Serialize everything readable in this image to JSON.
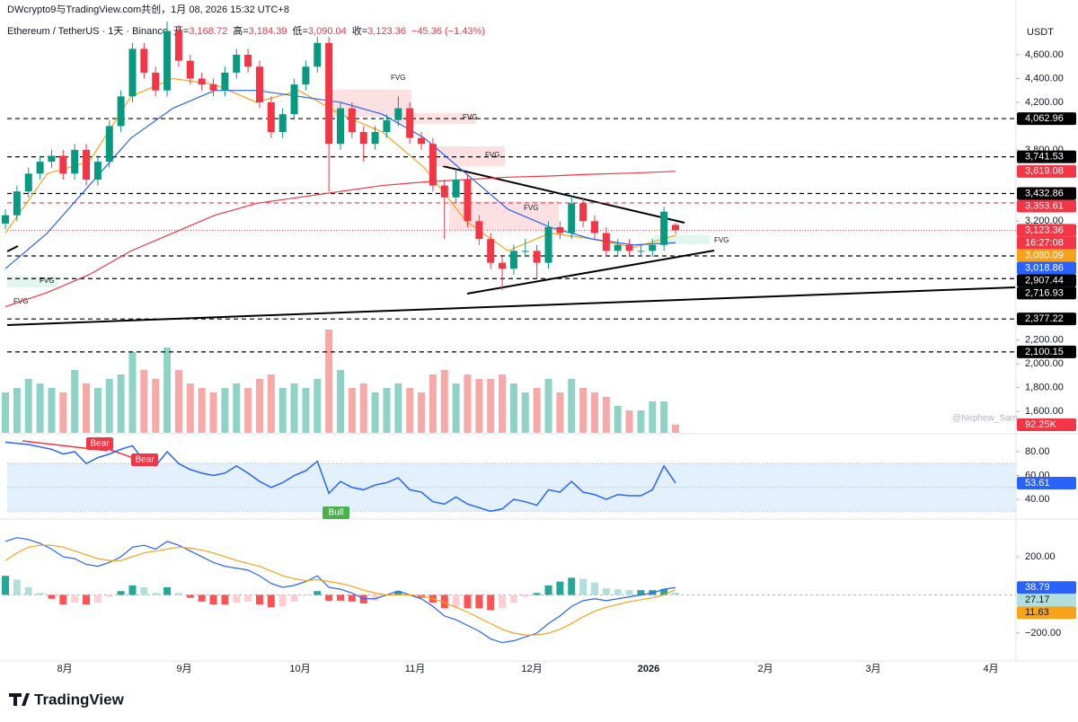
{
  "header": {
    "attribution": "DWcrypto9与TradingView.com共创，1月 08, 2026 15:32 UTC+8",
    "symbol": "Ethereum / TetherUS · 1天 · Binance",
    "ohlc": [
      {
        "key": "开=",
        "value": "3,168.72"
      },
      {
        "key": "高=",
        "value": "3,184.39"
      },
      {
        "key": "低=",
        "value": "3,090.04"
      },
      {
        "key": "收=",
        "value": "3,123.36"
      }
    ],
    "change": "−45.36 (−1.43%)",
    "currency": "USDT",
    "watermark": "@Nephew_Sam_",
    "logo": "TradingView"
  },
  "chart_data": {
    "type": "candlestick",
    "up_color": "#089981",
    "down_color": "#f23645",
    "candles": [
      [
        3180,
        3300,
        3130,
        3250
      ],
      [
        3250,
        3500,
        3200,
        3450
      ],
      [
        3450,
        3650,
        3400,
        3600
      ],
      [
        3600,
        3750,
        3550,
        3700
      ],
      [
        3700,
        3800,
        3650,
        3750
      ],
      [
        3750,
        3800,
        3550,
        3600
      ],
      [
        3600,
        3850,
        3550,
        3800
      ],
      [
        3800,
        3850,
        3500,
        3550
      ],
      [
        3550,
        3750,
        3500,
        3700
      ],
      [
        3700,
        4050,
        3650,
        4000
      ],
      [
        4000,
        4300,
        3950,
        4250
      ],
      [
        4250,
        4700,
        4200,
        4650
      ],
      [
        4650,
        4700,
        4400,
        4450
      ],
      [
        4450,
        4500,
        4250,
        4300
      ],
      [
        4300,
        4880,
        4250,
        4800
      ],
      [
        4800,
        4850,
        4500,
        4550
      ],
      [
        4550,
        4600,
        4350,
        4400
      ],
      [
        4400,
        4450,
        4300,
        4350
      ],
      [
        4350,
        4400,
        4250,
        4300
      ],
      [
        4300,
        4500,
        4250,
        4450
      ],
      [
        4450,
        4650,
        4400,
        4600
      ],
      [
        4600,
        4650,
        4450,
        4500
      ],
      [
        4500,
        4550,
        4150,
        4200
      ],
      [
        4200,
        4250,
        3900,
        3950
      ],
      [
        3950,
        4150,
        3900,
        4100
      ],
      [
        4100,
        4400,
        4050,
        4350
      ],
      [
        4350,
        4550,
        4300,
        4500
      ],
      [
        4500,
        4750,
        4450,
        4700
      ],
      [
        4700,
        4750,
        3450,
        3850
      ],
      [
        3850,
        4200,
        3800,
        4150
      ],
      [
        4150,
        4200,
        3900,
        3950
      ],
      [
        3950,
        4000,
        3700,
        3850
      ],
      [
        3850,
        4000,
        3800,
        3950
      ],
      [
        3950,
        4100,
        3900,
        4050
      ],
      [
        4050,
        4250,
        4000,
        4150
      ],
      [
        4150,
        4200,
        3850,
        3900
      ],
      [
        3900,
        3950,
        3800,
        3850
      ],
      [
        3850,
        3900,
        3450,
        3500
      ],
      [
        3500,
        3550,
        3050,
        3400
      ],
      [
        3400,
        3650,
        3350,
        3550
      ],
      [
        3550,
        3600,
        3150,
        3200
      ],
      [
        3200,
        3250,
        3000,
        3050
      ],
      [
        3050,
        3100,
        2800,
        2850
      ],
      [
        2850,
        2900,
        2620,
        2800
      ],
      [
        2800,
        3000,
        2750,
        2950
      ],
      [
        2950,
        3050,
        2900,
        2950
      ],
      [
        2950,
        3000,
        2720,
        2850
      ],
      [
        2850,
        3200,
        2800,
        3150
      ],
      [
        3150,
        3200,
        3050,
        3100
      ],
      [
        3100,
        3420,
        3050,
        3350
      ],
      [
        3350,
        3400,
        3150,
        3200
      ],
      [
        3200,
        3250,
        3050,
        3100
      ],
      [
        3100,
        3150,
        2900,
        2950
      ],
      [
        2950,
        3050,
        2900,
        3000
      ],
      [
        3000,
        3050,
        2900,
        2950
      ],
      [
        2950,
        3000,
        2900,
        2950
      ],
      [
        2950,
        3050,
        2900,
        3000
      ],
      [
        3000,
        3320,
        2950,
        3280
      ],
      [
        3168.72,
        3184.39,
        3090.04,
        3123.36
      ]
    ],
    "ylim": [
      1419,
      4872
    ],
    "yticks": [
      {
        "value": 4600,
        "label": "4,600.00"
      },
      {
        "value": 4400,
        "label": "4,400.00"
      },
      {
        "value": 4200,
        "label": "4,200.00"
      },
      {
        "value": 3800,
        "label": "3,800.00"
      },
      {
        "value": 3200,
        "label": "3,200.00"
      },
      {
        "value": 2200,
        "label": "2,200.00"
      },
      {
        "value": 2000,
        "label": "2,000.00"
      },
      {
        "value": 1800,
        "label": "1,800.00"
      },
      {
        "value": 1600,
        "label": "1,600.00"
      }
    ],
    "moving_averages": [
      {
        "color": "#f7a21b",
        "values": [
          3100,
          3600,
          3700,
          4250,
          4400,
          4350,
          4200,
          4300,
          4100,
          3950,
          3650,
          3200,
          2950,
          3100,
          3050,
          2980,
          3080.09
        ]
      },
      {
        "color": "#2962ff",
        "values": [
          2800,
          3100,
          3500,
          3900,
          4150,
          4300,
          4300,
          4250,
          4200,
          4100,
          3900,
          3600,
          3300,
          3150,
          3050,
          3000,
          3018.86
        ]
      },
      {
        "color": "#f23645",
        "values": [
          2480,
          2600,
          2750,
          2950,
          3100,
          3250,
          3350,
          3400,
          3450,
          3500,
          3530,
          3550,
          3570,
          3580,
          3595,
          3605,
          3619.08
        ]
      }
    ],
    "price_labels": [
      {
        "value": 4062.96,
        "label": "4,062.96",
        "color": "#000000",
        "line": "dashed"
      },
      {
        "value": 3741.53,
        "label": "3,741.53",
        "color": "#000000",
        "line": "dashed"
      },
      {
        "value": 3619.08,
        "label": "3,619.08",
        "color": "#f23645",
        "line": "none"
      },
      {
        "value": 3432.86,
        "label": "3,432.86",
        "color": "#000000",
        "line": "dashed"
      },
      {
        "value": 3353.61,
        "label": "3,353.61",
        "color": "#f23645",
        "line": "dashed"
      },
      {
        "value": 3123.36,
        "label": "3,123.36",
        "color": "#f23645",
        "line": "dotted",
        "countdown": "16:27:08"
      },
      {
        "value": 3080.09,
        "label": "3,080.09",
        "color": "#f7a21b",
        "line": "none"
      },
      {
        "value": 3018.86,
        "label": "3,018.86",
        "color": "#2962ff",
        "line": "none"
      },
      {
        "value": 2907.44,
        "label": "2,907.44",
        "color": "#000000",
        "line": "dashed"
      },
      {
        "value": 2716.93,
        "label": "2,716.93",
        "color": "#000000",
        "line": "dashed"
      },
      {
        "value": 2377.22,
        "label": "2,377.22",
        "color": "#000000",
        "line": "dashed"
      },
      {
        "value": 2100.15,
        "label": "2,100.15",
        "color": "#000000",
        "line": "dashed"
      }
    ],
    "fvg_labels": [
      "FVG",
      "FVG",
      "FVG",
      "FVG",
      "FVG",
      "FVG",
      "FVG"
    ],
    "volume": {
      "ylim": [
        0,
        1200
      ],
      "values": [
        450,
        500,
        600,
        550,
        500,
        450,
        700,
        550,
        500,
        600,
        650,
        900,
        700,
        600,
        950,
        700,
        550,
        500,
        450,
        500,
        550,
        500,
        600,
        650,
        500,
        550,
        500,
        600,
        1150,
        700,
        500,
        550,
        450,
        500,
        550,
        500,
        450,
        650,
        700,
        550,
        650,
        600,
        600,
        650,
        550,
        450,
        500,
        600,
        450,
        600,
        500,
        450,
        400,
        300,
        250,
        250,
        350,
        350,
        92.25
      ],
      "value_labels": [
        null,
        null,
        null,
        null,
        null,
        null,
        null,
        null,
        null,
        null,
        null,
        null,
        null,
        null,
        null,
        null,
        null,
        null,
        null,
        null,
        null,
        null,
        null,
        null,
        null,
        null,
        null,
        null,
        null,
        null,
        null,
        null,
        null,
        null,
        null,
        null,
        null,
        null,
        null,
        null,
        null,
        null,
        null,
        null,
        null,
        null,
        null,
        null,
        null,
        null,
        null,
        null,
        null,
        null,
        null,
        null,
        null,
        null,
        "92.25K"
      ]
    },
    "rsi": {
      "color": "#2962ff",
      "ylim": [
        25.7,
        92.8
      ],
      "band": [
        30,
        70
      ],
      "midline": 50,
      "yticks": [
        {
          "value": 80,
          "label": "80.00"
        },
        {
          "value": 60,
          "label": "60.00"
        },
        {
          "value": 40,
          "label": "40.00"
        }
      ],
      "values": [
        88,
        87,
        86,
        84,
        82,
        78,
        80,
        70,
        75,
        78,
        82,
        85,
        72,
        68,
        80,
        70,
        65,
        62,
        60,
        62,
        68,
        62,
        55,
        50,
        54,
        60,
        64,
        72,
        45,
        55,
        50,
        48,
        52,
        54,
        58,
        48,
        46,
        38,
        36,
        42,
        36,
        33,
        30,
        32,
        40,
        38,
        35,
        48,
        46,
        55,
        46,
        44,
        40,
        44,
        43,
        43,
        48,
        68,
        53.61
      ],
      "divergences": [
        "Bear",
        "Bear",
        "Bull"
      ]
    },
    "macd": {
      "ylim": [
        -341,
        388
      ],
      "yticks": [
        {
          "value": 200,
          "label": "200.00"
        },
        {
          "value": -200,
          "label": "−200.00"
        }
      ],
      "macd_line": {
        "color": "#2962ff",
        "values": [
          280,
          300,
          290,
          270,
          240,
          200,
          190,
          160,
          150,
          170,
          200,
          250,
          260,
          240,
          280,
          260,
          230,
          200,
          170,
          150,
          140,
          130,
          100,
          60,
          40,
          50,
          70,
          100,
          40,
          30,
          10,
          -20,
          -20,
          0,
          20,
          0,
          -20,
          -60,
          -110,
          -130,
          -160,
          -190,
          -230,
          -250,
          -240,
          -220,
          -200,
          -150,
          -110,
          -60,
          -30,
          -20,
          -30,
          -20,
          -10,
          0,
          10,
          30,
          38.79
        ]
      },
      "signal_line": {
        "color": "#f7a21b",
        "values": [
          180,
          220,
          250,
          260,
          260,
          250,
          230,
          210,
          190,
          180,
          180,
          200,
          220,
          230,
          240,
          250,
          245,
          235,
          220,
          200,
          180,
          165,
          150,
          125,
          100,
          85,
          75,
          80,
          70,
          60,
          45,
          25,
          10,
          0,
          0,
          0,
          -5,
          -20,
          -40,
          -65,
          -90,
          -120,
          -150,
          -180,
          -200,
          -210,
          -210,
          -200,
          -180,
          -150,
          -115,
          -85,
          -65,
          -50,
          -35,
          -25,
          -15,
          0,
          27.17
        ]
      },
      "histogram": [
        100,
        80,
        40,
        10,
        -20,
        -50,
        -40,
        -50,
        -40,
        -10,
        20,
        50,
        40,
        10,
        40,
        10,
        -15,
        -35,
        -50,
        -50,
        -40,
        -35,
        -50,
        -65,
        -60,
        -35,
        -5,
        20,
        -30,
        -30,
        -35,
        -45,
        -30,
        0,
        20,
        0,
        -15,
        -40,
        -70,
        -65,
        -70,
        -70,
        -80,
        -70,
        -40,
        -10,
        10,
        50,
        70,
        90,
        85,
        65,
        35,
        30,
        25,
        25,
        25,
        30,
        11.63
      ]
    },
    "x_labels": [
      "8月",
      "9月",
      "10月",
      "11月",
      "12月",
      "2026",
      "2月",
      "3月",
      "4月"
    ]
  }
}
